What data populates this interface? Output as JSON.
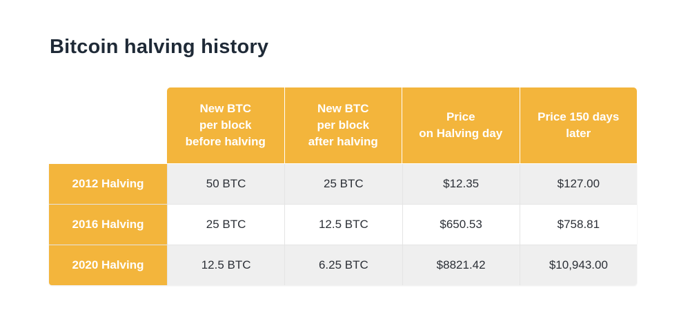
{
  "title": "Bitcoin halving history",
  "table": {
    "headers": [
      "New BTC\nper block\nbefore halving",
      "New BTC\nper block\nafter halving",
      "Price\non Halving day",
      "Price 150 days\nlater"
    ],
    "rows": [
      {
        "label": "2012 Halving",
        "cells": [
          "50 BTC",
          "25 BTC",
          "$12.35",
          "$127.00"
        ]
      },
      {
        "label": "2016 Halving",
        "cells": [
          "25 BTC",
          "12.5 BTC",
          "$650.53",
          "$758.81"
        ]
      },
      {
        "label": "2020 Halving",
        "cells": [
          "12.5 BTC",
          "6.25 BTC",
          "$8821.42",
          "$10,943.00"
        ]
      }
    ]
  },
  "colors": {
    "accent": "#f3b53c",
    "title": "#1f2a37",
    "shaded_row": "#efefef"
  }
}
